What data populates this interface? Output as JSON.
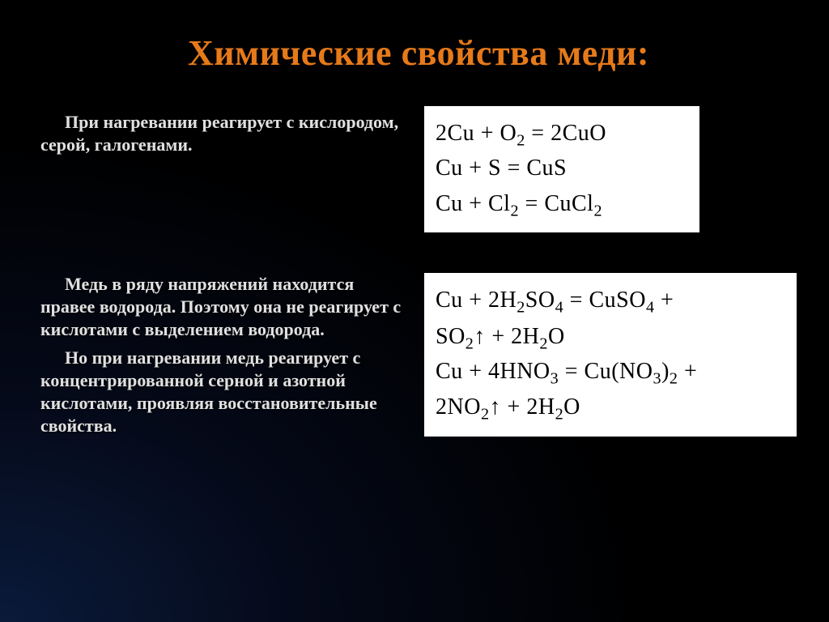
{
  "title": "Химические свойства меди:",
  "section1": {
    "text": "При нагревании реагирует с кислородом, серой, галогенами.",
    "equations": {
      "eq1": "2Cu + O₂ = 2CuO",
      "eq2": "Cu + S = CuS",
      "eq3": "Cu + Cl₂ = CuCl₂"
    },
    "eq_formulas": {
      "r1": {
        "lhs1": "2Cu",
        "op": "+",
        "lhs2": "O",
        "sub1": "2",
        "eq": "=",
        "rhs": "2CuO"
      },
      "r2": {
        "lhs1": "Cu",
        "op": "+",
        "lhs2": "S",
        "eq": "=",
        "rhs": "CuS"
      },
      "r3": {
        "lhs1": "Cu",
        "op": "+",
        "lhs2": "Cl",
        "sub1": "2",
        "eq": "=",
        "rhs": "CuCl",
        "sub2": "2"
      }
    }
  },
  "section2": {
    "p1": "Медь в ряду напряжений находится правее водорода. Поэтому она не реагирует с кислотами с выделением водорода.",
    "p2": "Но при нагревании медь реагирует с концентрированной серной и азотной кислотами, проявляя восстановительные свойства.",
    "equations": {
      "eq1": "Cu + 2H₂SO₄ = CuSO₄ + SO₂↑ + 2H₂O",
      "eq2": "Cu + 4HNO₃ = Cu(NO₃)₂ + 2NO₂↑ + 2H₂O"
    },
    "eq_formulas": {
      "r1": {
        "line1": {
          "a": "Cu",
          "plus": "+",
          "b": "2H",
          "s1": "2",
          "c": "SO",
          "s2": "4",
          "eq": "=",
          "d": "CuSO",
          "s3": "4",
          "tail": " +"
        },
        "line2": {
          "a": "SO",
          "s1": "2",
          "arrow": "↑",
          "plus": "+",
          "b": "2H",
          "s2": "2",
          "c": "O"
        }
      },
      "r2": {
        "line1": {
          "a": "Cu",
          "plus": "+",
          "b": "4HNO",
          "s1": "3",
          "eq": "=",
          "c": "Cu(NO",
          "s2": "3",
          "d": ")",
          "s3": "2",
          "tail": " +"
        },
        "line2": {
          "a": "2NO",
          "s1": "2",
          "arrow": "↑",
          "plus": "+",
          "b": "2H",
          "s2": "2",
          "c": "O"
        }
      }
    }
  },
  "style": {
    "title_color": "#e67a1a",
    "text_color": "#e0e0e0",
    "eq_bg": "#ffffff",
    "eq_text": "#000000",
    "title_fontsize": 44,
    "body_fontsize": 22,
    "eq_fontsize": 28,
    "slide_bg_gradient": [
      "#0a1a3a",
      "#050a1a",
      "#000000"
    ]
  }
}
